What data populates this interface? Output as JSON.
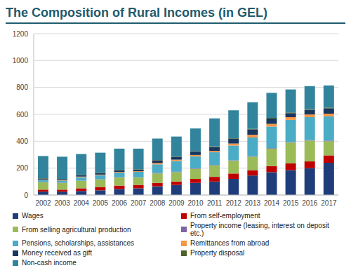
{
  "chart_data": {
    "type": "bar",
    "title": "The Composition of Rural Incomes (in GEL)",
    "categories": [
      "2002",
      "2003",
      "2004",
      "2005",
      "2006",
      "2007",
      "2008",
      "2009",
      "2010",
      "2011",
      "2012",
      "2013",
      "2014",
      "2015",
      "2016",
      "2017"
    ],
    "series": [
      {
        "name": "Wages",
        "color": "#1f3d7a",
        "values": [
          25,
          25,
          30,
          35,
          45,
          50,
          65,
          75,
          90,
          100,
          120,
          145,
          170,
          185,
          200,
          240
        ]
      },
      {
        "name": "From self-employment",
        "color": "#c00000",
        "values": [
          15,
          15,
          20,
          25,
          25,
          25,
          25,
          25,
          30,
          35,
          40,
          40,
          45,
          50,
          50,
          55
        ]
      },
      {
        "name": "From selling agricultural production",
        "color": "#9bbb59",
        "values": [
          55,
          50,
          55,
          55,
          60,
          55,
          70,
          70,
          75,
          85,
          95,
          100,
          130,
          155,
          155,
          105
        ]
      },
      {
        "name": "Property income (leasing, interest on deposit etc.)",
        "color": "#8064a2",
        "values": [
          2,
          2,
          2,
          2,
          2,
          2,
          3,
          3,
          3,
          3,
          3,
          3,
          4,
          4,
          4,
          5
        ]
      },
      {
        "name": "Pensions, scholarships, assistances",
        "color": "#4bacc6",
        "values": [
          15,
          15,
          25,
          30,
          35,
          40,
          65,
          80,
          90,
          95,
          110,
          140,
          160,
          165,
          170,
          180
        ]
      },
      {
        "name": "Remittances from abroad",
        "color": "#f79646",
        "values": [
          3,
          3,
          5,
          5,
          5,
          5,
          10,
          10,
          10,
          10,
          15,
          20,
          20,
          20,
          20,
          20
        ]
      },
      {
        "name": "Money received as gift",
        "color": "#17375e",
        "values": [
          8,
          8,
          10,
          10,
          12,
          12,
          20,
          20,
          25,
          30,
          35,
          40,
          40,
          30,
          35,
          40
        ]
      },
      {
        "name": "Property disposal",
        "color": "#4f6228",
        "values": [
          2,
          2,
          3,
          3,
          3,
          3,
          3,
          3,
          3,
          4,
          4,
          4,
          5,
          5,
          5,
          5
        ]
      },
      {
        "name": "Non-cash income",
        "color": "#31849b",
        "values": [
          165,
          165,
          155,
          150,
          158,
          153,
          159,
          149,
          169,
          208,
          208,
          198,
          186,
          171,
          171,
          165
        ]
      }
    ],
    "ylim": [
      0,
      1200
    ],
    "yticks": [
      0,
      200,
      400,
      600,
      800,
      1000,
      1200
    ],
    "grid": true,
    "stacked": true,
    "legend": "bottom"
  }
}
